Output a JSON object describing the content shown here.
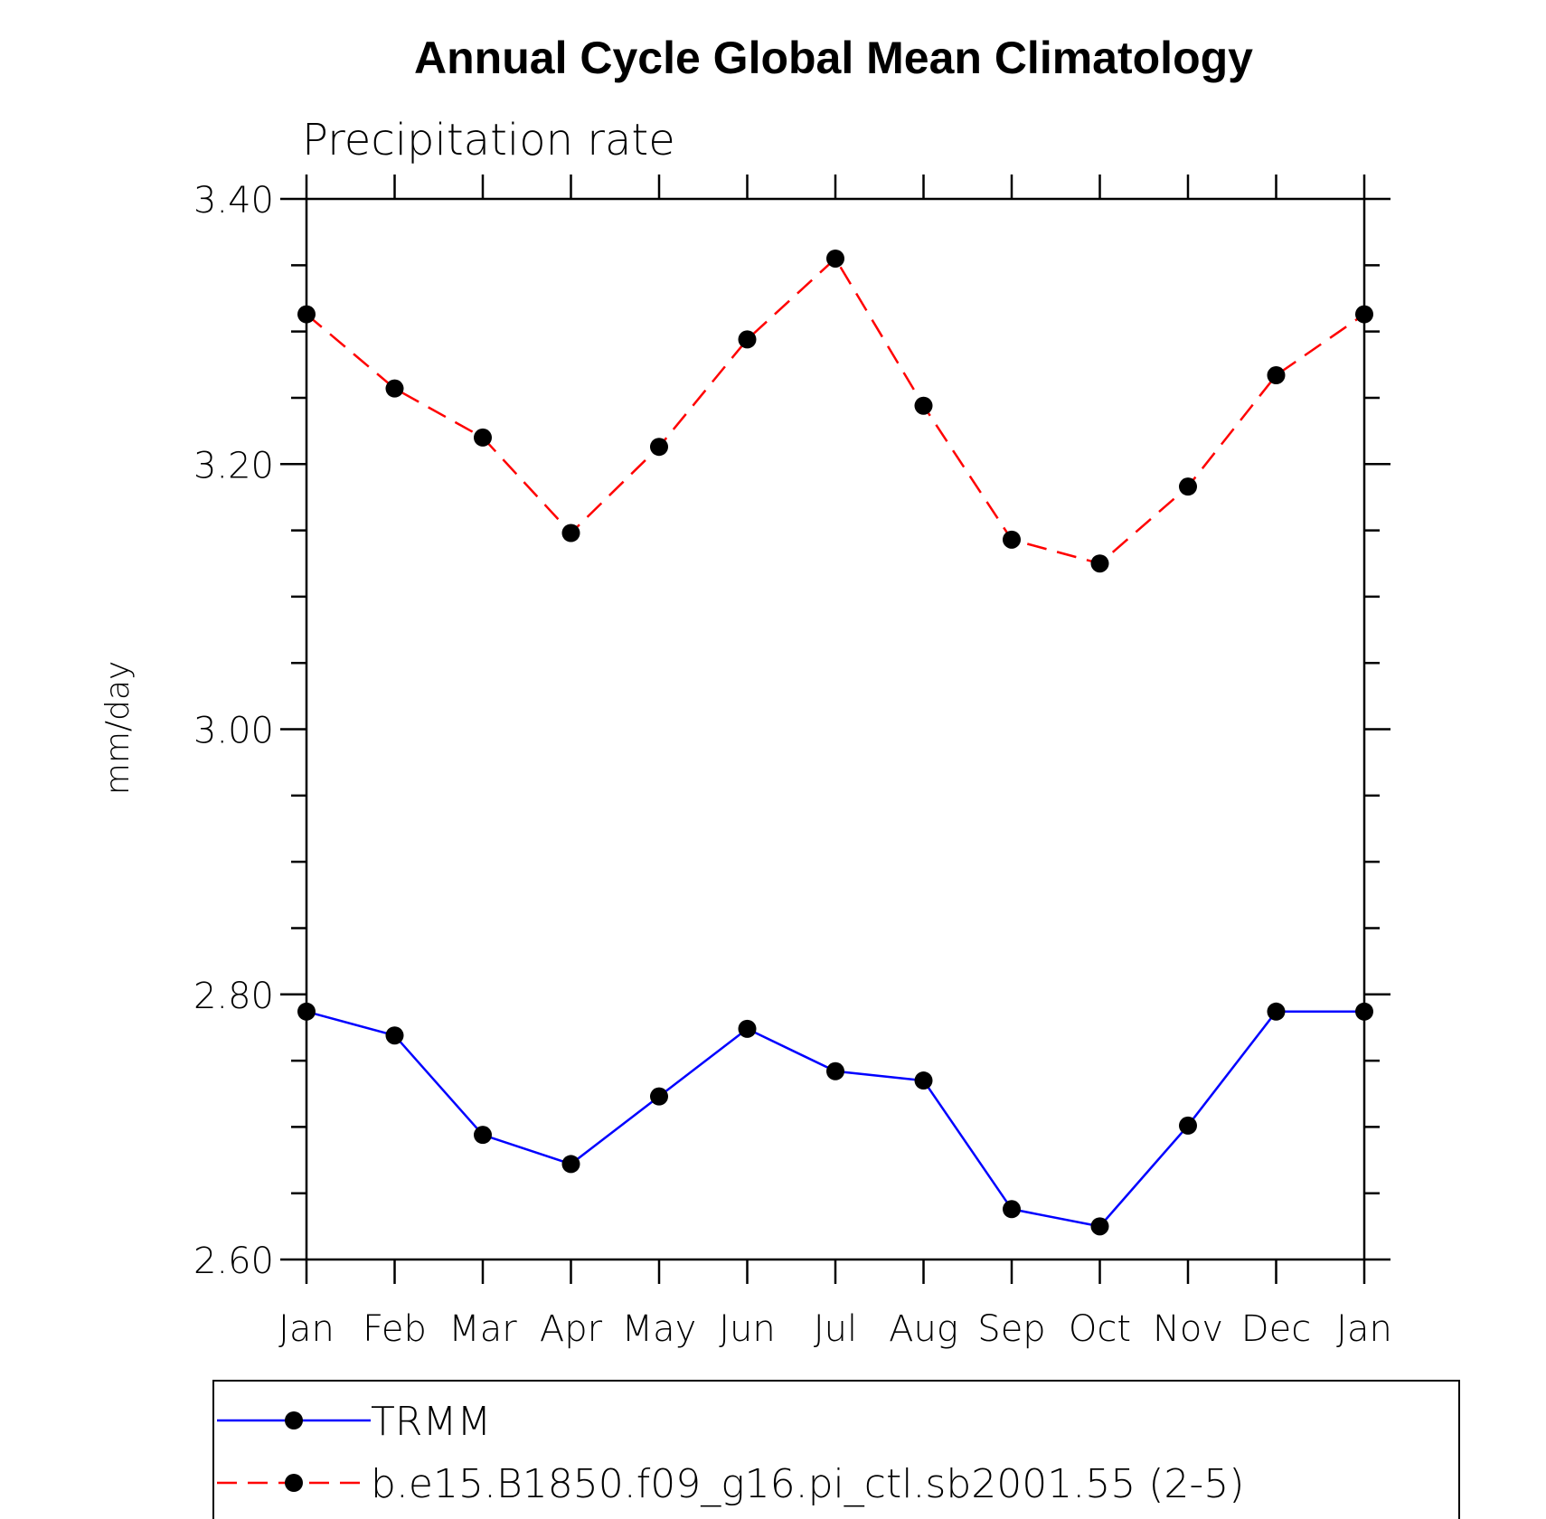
{
  "chart_data": {
    "type": "line",
    "title": "Annual Cycle Global Mean Climatology",
    "subtitle": "Precipitation rate",
    "xlabel": "",
    "ylabel": "mm/day",
    "categories": [
      "Jan",
      "Feb",
      "Mar",
      "Apr",
      "May",
      "Jun",
      "Jul",
      "Aug",
      "Sep",
      "Oct",
      "Nov",
      "Dec",
      "Jan"
    ],
    "y_ticks": [
      "2.60",
      "2.80",
      "3.00",
      "3.20",
      "3.40"
    ],
    "ylim": [
      2.6,
      3.4
    ],
    "grid": false,
    "legend_position": "bottom",
    "series": [
      {
        "name": "TRMM",
        "color": "#0000ff",
        "style": "solid",
        "marker": "filled-circle",
        "values": [
          2.787,
          2.769,
          2.694,
          2.672,
          2.723,
          2.774,
          2.742,
          2.735,
          2.638,
          2.625,
          2.701,
          2.787,
          2.787
        ]
      },
      {
        "name": "b.e15.B1850.f09_g16.pi_ctl.sb2001.55 (2-5)",
        "color": "#ff0000",
        "style": "dashed",
        "marker": "filled-circle",
        "values": [
          3.313,
          3.257,
          3.22,
          3.148,
          3.213,
          3.294,
          3.355,
          3.244,
          3.143,
          3.125,
          3.183,
          3.267,
          3.313
        ]
      }
    ]
  }
}
